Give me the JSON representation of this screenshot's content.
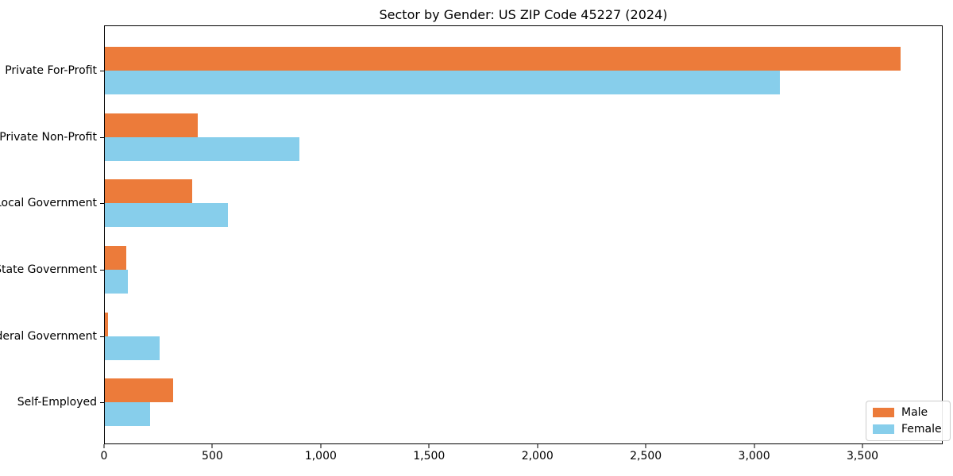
{
  "title": "Sector by Gender: US ZIP Code 45227 (2024)",
  "colors": {
    "male": "#EC7B3A",
    "female": "#87CEEB",
    "spine": "#000000",
    "legend_border": "#cccccc"
  },
  "chart_data": {
    "type": "bar",
    "orientation": "horizontal",
    "title": "Sector by Gender: US ZIP Code 45227 (2024)",
    "xlabel": "",
    "ylabel": "",
    "categories": [
      "Private For-Profit",
      "Private Non-Profit",
      "Local Government",
      "State Government",
      "Federal Government",
      "Self-Employed"
    ],
    "series": [
      {
        "name": "Male",
        "color": "#EC7B3A",
        "values": [
          3680,
          430,
          405,
          100,
          15,
          315
        ]
      },
      {
        "name": "Female",
        "color": "#87CEEB",
        "values": [
          3120,
          900,
          570,
          105,
          255,
          210
        ]
      }
    ],
    "xlim": [
      0,
      3870
    ],
    "xticks": [
      0,
      500,
      1000,
      1500,
      2000,
      2500,
      3000,
      3500
    ],
    "xtick_labels": [
      "0",
      "500",
      "1,000",
      "1,500",
      "2,000",
      "2,500",
      "3,000",
      "3,500"
    ],
    "grid": false,
    "legend_position": "lower right"
  },
  "legend": {
    "items": [
      {
        "label": "Male",
        "color": "#EC7B3A"
      },
      {
        "label": "Female",
        "color": "#87CEEB"
      }
    ]
  }
}
